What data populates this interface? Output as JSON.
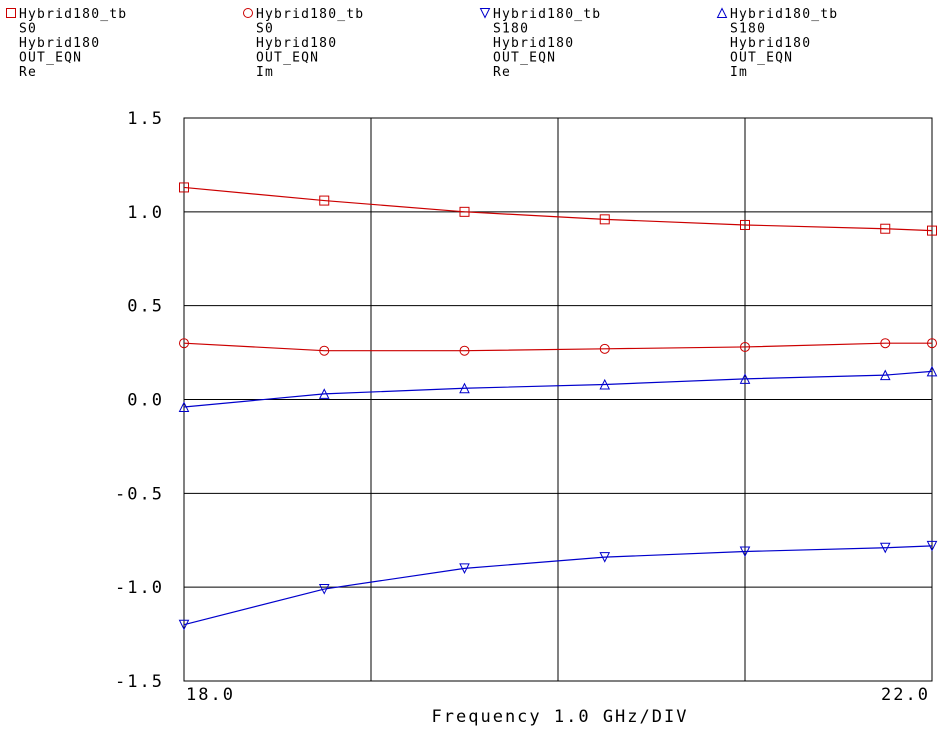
{
  "chart_data": {
    "type": "line",
    "xlabel": "Frequency 1.0 GHz/DIV",
    "x_tick_labels": [
      "18.0",
      "22.0"
    ],
    "y_tick_labels": [
      "1.5",
      "1.0",
      "0.5",
      "0.0",
      "-0.5",
      "-1.0",
      "-1.5"
    ],
    "xlim": [
      18.0,
      22.0
    ],
    "ylim": [
      -1.5,
      1.5
    ],
    "grid": true,
    "legend_position": "top",
    "x": [
      18.0,
      18.75,
      19.5,
      20.25,
      21.0,
      21.75,
      22.0
    ],
    "series": [
      {
        "name": "Hybrid180_tb",
        "legend_lines": [
          "Hybrid180_tb",
          "S0",
          "Hybrid180",
          "OUT_EQN",
          "Re"
        ],
        "marker": "square",
        "color": "#cc0000",
        "values": [
          1.13,
          1.06,
          1.0,
          0.96,
          0.93,
          0.91,
          0.9
        ]
      },
      {
        "name": "Hybrid180_tb",
        "legend_lines": [
          "Hybrid180_tb",
          "S0",
          "Hybrid180",
          "OUT_EQN",
          "Im"
        ],
        "marker": "circle",
        "color": "#cc0000",
        "values": [
          0.3,
          0.26,
          0.26,
          0.27,
          0.28,
          0.3,
          0.3
        ]
      },
      {
        "name": "Hybrid180_tb",
        "legend_lines": [
          "Hybrid180_tb",
          "S180",
          "Hybrid180",
          "OUT_EQN",
          "Re"
        ],
        "marker": "triangle-down",
        "color": "#0000cc",
        "values": [
          -1.2,
          -1.01,
          -0.9,
          -0.84,
          -0.81,
          -0.79,
          -0.78
        ]
      },
      {
        "name": "Hybrid180_tb",
        "legend_lines": [
          "Hybrid180_tb",
          "S180",
          "Hybrid180",
          "OUT_EQN",
          "Im"
        ],
        "marker": "triangle-up",
        "color": "#0000cc",
        "values": [
          -0.04,
          0.03,
          0.06,
          0.08,
          0.11,
          0.13,
          0.15
        ]
      }
    ]
  }
}
